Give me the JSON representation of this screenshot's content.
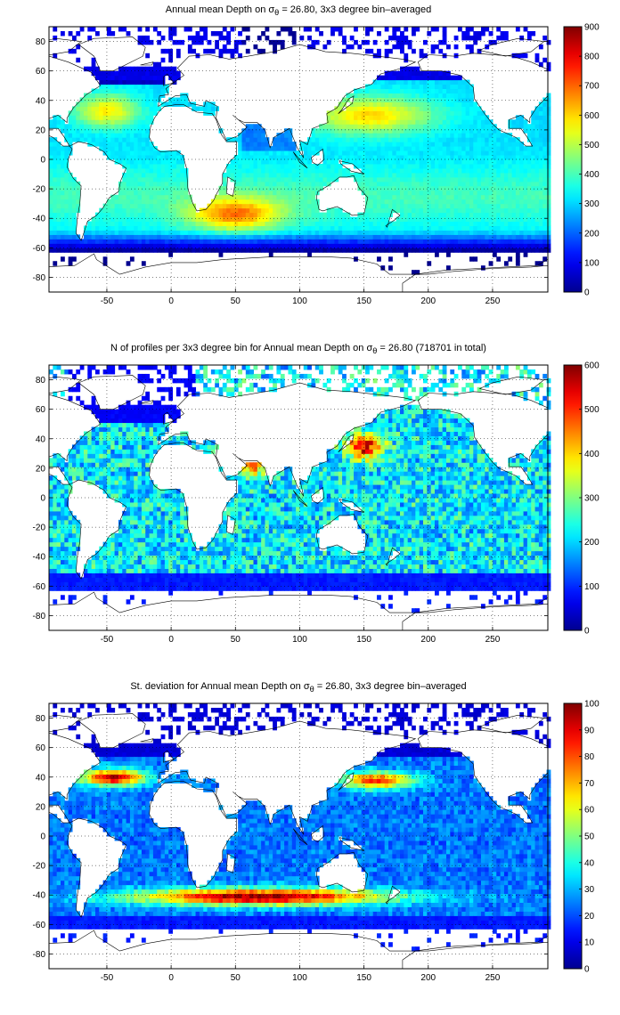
{
  "jet_colors": [
    "#00008f",
    "#0000ff",
    "#0080ff",
    "#00ffff",
    "#80ff80",
    "#ffff00",
    "#ff8000",
    "#ff0000",
    "#800000"
  ],
  "land_color": "#ffffff",
  "chart_data": [
    {
      "type": "heatmap",
      "title_parts": {
        "prefix": "Annual mean Depth on ",
        "symbol": "σ",
        "subscript": "θ",
        "suffix": " = 26.80, 3x3 degree bin–averaged"
      },
      "xlabel": "",
      "ylabel": "",
      "xlim": [
        -95,
        293
      ],
      "ylim": [
        -90,
        90
      ],
      "xticks": [
        -50,
        0,
        50,
        100,
        150,
        200,
        250
      ],
      "yticks": [
        -80,
        -60,
        -40,
        -20,
        0,
        20,
        40,
        60,
        80
      ],
      "colorbar": {
        "min": 0,
        "max": 900,
        "ticks": [
          0,
          100,
          200,
          300,
          400,
          500,
          600,
          700,
          800,
          900
        ]
      },
      "grid": true,
      "field": "depth"
    },
    {
      "type": "heatmap",
      "title_parts": {
        "prefix": "N of profiles per 3x3 degree bin for Annual mean Depth on ",
        "symbol": "σ",
        "subscript": "θ",
        "suffix": " = 26.80 (718701 in total)"
      },
      "xlabel": "",
      "ylabel": "",
      "xlim": [
        -95,
        293
      ],
      "ylim": [
        -90,
        90
      ],
      "xticks": [
        -50,
        0,
        50,
        100,
        150,
        200,
        250
      ],
      "yticks": [
        -80,
        -60,
        -40,
        -20,
        0,
        20,
        40,
        60,
        80
      ],
      "colorbar": {
        "min": 0,
        "max": 600,
        "ticks": [
          0,
          100,
          200,
          300,
          400,
          500,
          600
        ]
      },
      "grid": true,
      "field": "count"
    },
    {
      "type": "heatmap",
      "title_parts": {
        "prefix": "St. deviation for Annual mean Depth on ",
        "symbol": "σ",
        "subscript": "θ",
        "suffix": " = 26.80, 3x3 degree bin–averaged"
      },
      "xlabel": "",
      "ylabel": "",
      "xlim": [
        -95,
        293
      ],
      "ylim": [
        -90,
        90
      ],
      "xticks": [
        -50,
        0,
        50,
        100,
        150,
        200,
        250
      ],
      "yticks": [
        -80,
        -60,
        -40,
        -20,
        0,
        20,
        40,
        60,
        80
      ],
      "colorbar": {
        "min": 0,
        "max": 100,
        "ticks": [
          0,
          10,
          20,
          30,
          40,
          50,
          60,
          70,
          80,
          90,
          100
        ]
      },
      "grid": true,
      "field": "std"
    }
  ]
}
